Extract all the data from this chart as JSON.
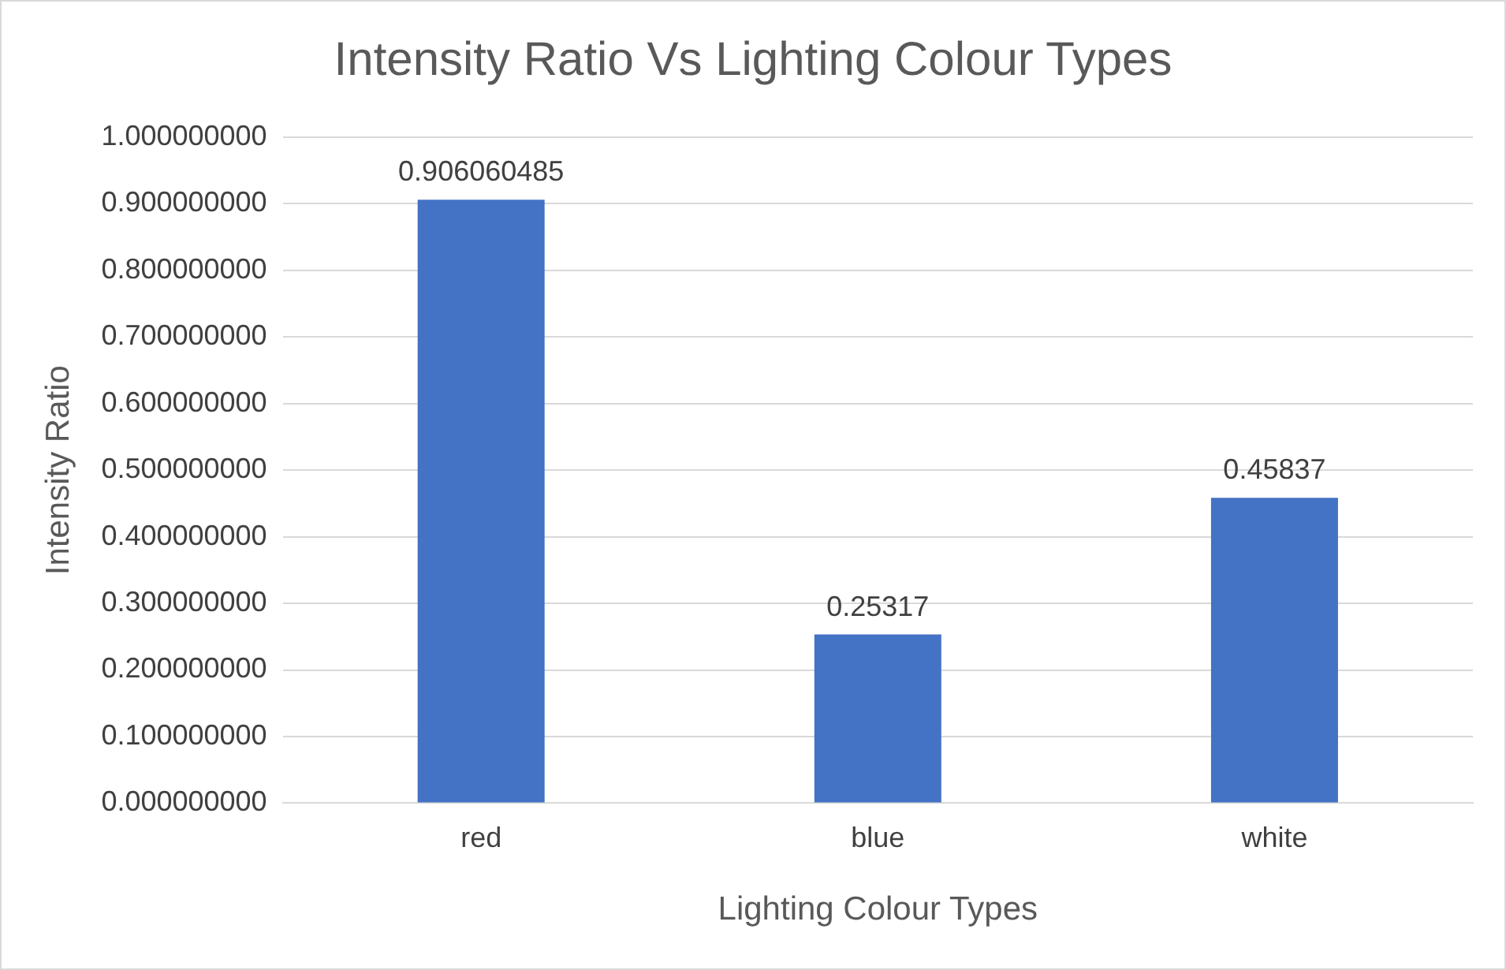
{
  "chart_data": {
    "type": "bar",
    "title": "Intensity Ratio Vs Lighting Colour Types",
    "xlabel": "Lighting Colour Types",
    "ylabel": "Intensity Ratio",
    "categories": [
      "red",
      "blue",
      "white"
    ],
    "values": [
      0.906060485,
      0.25317,
      0.45837
    ],
    "color": "#4472c4",
    "ylim": [
      0,
      1
    ],
    "yticks": [
      {
        "value": 0,
        "label": "0.000000000"
      },
      {
        "value": 0.1,
        "label": "0.100000000"
      },
      {
        "value": 0.2,
        "label": "0.200000000"
      },
      {
        "value": 0.3,
        "label": "0.300000000"
      },
      {
        "value": 0.4,
        "label": "0.400000000"
      },
      {
        "value": 0.5,
        "label": "0.500000000"
      },
      {
        "value": 0.6,
        "label": "0.600000000"
      },
      {
        "value": 0.7,
        "label": "0.700000000"
      },
      {
        "value": 0.8,
        "label": "0.800000000"
      },
      {
        "value": 0.9,
        "label": "0.900000000"
      },
      {
        "value": 1,
        "label": "1.000000000"
      }
    ],
    "grid": "y",
    "legend": false,
    "data_labels": true
  }
}
